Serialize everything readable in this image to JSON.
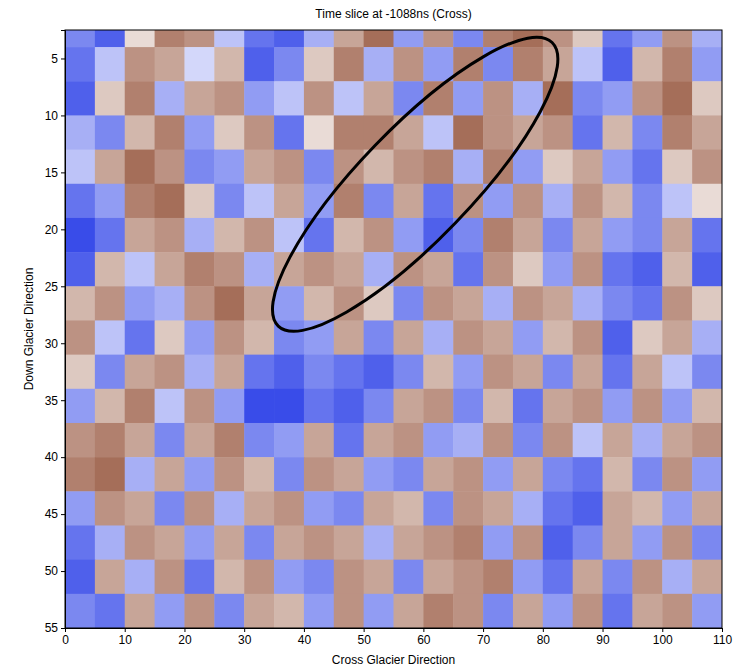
{
  "chart_data": {
    "type": "heatmap",
    "title": "Time slice at -1088ns (Cross)",
    "x_label": "Cross Glacier Direction",
    "y_label": "Down Glacier Direction",
    "xlim": [
      0,
      110
    ],
    "ylim": [
      2.5,
      55
    ],
    "xticks": [
      0,
      10,
      20,
      30,
      40,
      50,
      60,
      70,
      80,
      90,
      100,
      110
    ],
    "yticks": [
      5,
      10,
      15,
      20,
      25,
      30,
      35,
      40,
      45,
      50,
      55
    ],
    "zlim": [
      -1,
      1
    ],
    "x_edges": [
      0,
      5,
      10,
      15,
      20,
      25,
      30,
      35,
      40,
      45,
      50,
      55,
      60,
      65,
      70,
      75,
      80,
      85,
      90,
      95,
      100,
      105,
      110
    ],
    "y_edges": [
      1,
      4,
      7,
      10,
      13,
      16,
      19,
      22,
      25,
      28,
      31,
      34,
      37,
      40,
      43,
      46,
      49,
      52,
      55
    ],
    "cells": [
      [
        -0.6,
        -0.8,
        0.2,
        0.7,
        0.6,
        -0.3,
        -0.7,
        -0.8,
        -0.4,
        0.5,
        0.8,
        -0.5,
        0.6,
        -0.6,
        0.7,
        0.8,
        0.6,
        0.3,
        -0.7,
        -0.5,
        0.6,
        -0.4
      ],
      [
        -0.7,
        -0.3,
        0.6,
        0.5,
        -0.2,
        0.4,
        -0.8,
        -0.6,
        0.3,
        0.7,
        -0.4,
        0.6,
        -0.5,
        0.7,
        -0.6,
        0.7,
        0.5,
        -0.3,
        -0.8,
        0.4,
        0.7,
        -0.5
      ],
      [
        -0.8,
        0.3,
        0.7,
        -0.4,
        0.5,
        0.6,
        -0.5,
        -0.3,
        0.6,
        -0.3,
        0.5,
        -0.6,
        0.7,
        -0.5,
        0.6,
        -0.4,
        0.8,
        -0.6,
        -0.5,
        0.6,
        0.8,
        0.3
      ],
      [
        -0.4,
        -0.6,
        0.4,
        0.7,
        -0.5,
        0.3,
        0.6,
        -0.7,
        0.2,
        0.7,
        0.7,
        0.5,
        -0.3,
        0.8,
        0.6,
        0.5,
        0.6,
        -0.7,
        0.4,
        -0.6,
        0.7,
        0.5
      ],
      [
        -0.3,
        0.5,
        0.8,
        0.6,
        -0.6,
        -0.5,
        0.5,
        0.6,
        -0.6,
        0.6,
        0.4,
        0.6,
        0.7,
        -0.4,
        0.7,
        -0.5,
        0.3,
        0.5,
        -0.5,
        -0.7,
        0.3,
        0.6
      ],
      [
        -0.7,
        -0.5,
        0.7,
        0.8,
        0.3,
        -0.6,
        -0.3,
        0.5,
        -0.5,
        0.7,
        -0.6,
        0.5,
        -0.7,
        0.6,
        -0.5,
        0.6,
        -0.4,
        0.6,
        0.4,
        -0.6,
        -0.3,
        0.2
      ],
      [
        -0.9,
        -0.7,
        0.5,
        0.6,
        -0.4,
        0.4,
        0.6,
        -0.3,
        -0.7,
        0.4,
        0.6,
        -0.5,
        -0.8,
        -0.6,
        0.7,
        0.5,
        -0.6,
        0.5,
        -0.5,
        -0.6,
        0.5,
        -0.7
      ],
      [
        -0.8,
        0.4,
        -0.3,
        0.5,
        0.7,
        0.6,
        -0.4,
        0.5,
        0.6,
        0.5,
        -0.4,
        0.6,
        0.5,
        -0.7,
        0.6,
        0.3,
        -0.5,
        0.6,
        -0.7,
        -0.8,
        0.4,
        -0.8
      ],
      [
        0.4,
        0.6,
        -0.5,
        -0.4,
        0.6,
        0.8,
        0.5,
        -0.5,
        0.4,
        0.6,
        0.3,
        -0.6,
        0.6,
        0.5,
        -0.4,
        0.6,
        0.5,
        -0.4,
        -0.6,
        -0.7,
        0.6,
        0.3
      ],
      [
        0.6,
        -0.3,
        -0.7,
        0.3,
        -0.5,
        0.6,
        0.4,
        -0.6,
        -0.5,
        0.5,
        -0.6,
        0.5,
        -0.4,
        0.6,
        0.5,
        -0.5,
        0.4,
        0.6,
        -0.8,
        0.3,
        0.5,
        -0.4
      ],
      [
        0.3,
        -0.6,
        0.5,
        0.6,
        -0.4,
        0.5,
        -0.7,
        -0.8,
        -0.6,
        -0.7,
        -0.8,
        -0.6,
        0.4,
        -0.5,
        0.6,
        0.5,
        -0.6,
        0.5,
        -0.7,
        0.5,
        -0.3,
        -0.6
      ],
      [
        -0.5,
        0.4,
        0.7,
        -0.3,
        0.6,
        -0.5,
        -0.9,
        -0.9,
        -0.7,
        -0.8,
        -0.6,
        0.5,
        0.6,
        -0.6,
        0.4,
        -0.7,
        0.5,
        0.6,
        -0.5,
        0.6,
        -0.5,
        0.4
      ],
      [
        0.6,
        0.7,
        0.5,
        -0.6,
        0.5,
        0.7,
        -0.6,
        -0.5,
        0.5,
        -0.7,
        0.5,
        0.6,
        -0.5,
        -0.4,
        0.6,
        -0.6,
        0.6,
        -0.3,
        0.5,
        -0.4,
        0.5,
        0.6
      ],
      [
        0.7,
        0.8,
        -0.4,
        0.5,
        -0.5,
        0.6,
        0.4,
        -0.6,
        0.6,
        0.5,
        -0.5,
        -0.6,
        0.5,
        0.6,
        -0.5,
        0.5,
        -0.6,
        -0.7,
        0.4,
        -0.6,
        0.6,
        -0.5
      ],
      [
        -0.5,
        0.6,
        0.5,
        -0.6,
        0.6,
        -0.4,
        0.5,
        0.6,
        -0.5,
        -0.6,
        0.5,
        0.4,
        -0.6,
        0.6,
        0.5,
        -0.4,
        -0.7,
        -0.8,
        0.5,
        0.4,
        -0.5,
        0.5
      ],
      [
        -0.7,
        -0.4,
        0.6,
        0.5,
        -0.5,
        0.5,
        -0.6,
        0.5,
        0.6,
        0.5,
        -0.4,
        0.5,
        0.6,
        0.7,
        -0.5,
        0.6,
        -0.8,
        -0.6,
        0.5,
        -0.5,
        0.6,
        -0.6
      ],
      [
        -0.8,
        0.5,
        -0.4,
        0.6,
        -0.7,
        0.4,
        0.6,
        -0.5,
        -0.6,
        0.6,
        0.5,
        -0.6,
        0.5,
        0.6,
        0.7,
        -0.5,
        -0.7,
        0.5,
        -0.6,
        0.6,
        -0.4,
        0.5
      ],
      [
        -0.6,
        -0.7,
        0.5,
        -0.5,
        0.6,
        -0.6,
        0.5,
        0.4,
        -0.5,
        0.6,
        -0.5,
        0.5,
        0.7,
        0.6,
        -0.6,
        0.5,
        -0.5,
        0.6,
        -0.7,
        0.5,
        0.6,
        -0.5
      ]
    ]
  }
}
